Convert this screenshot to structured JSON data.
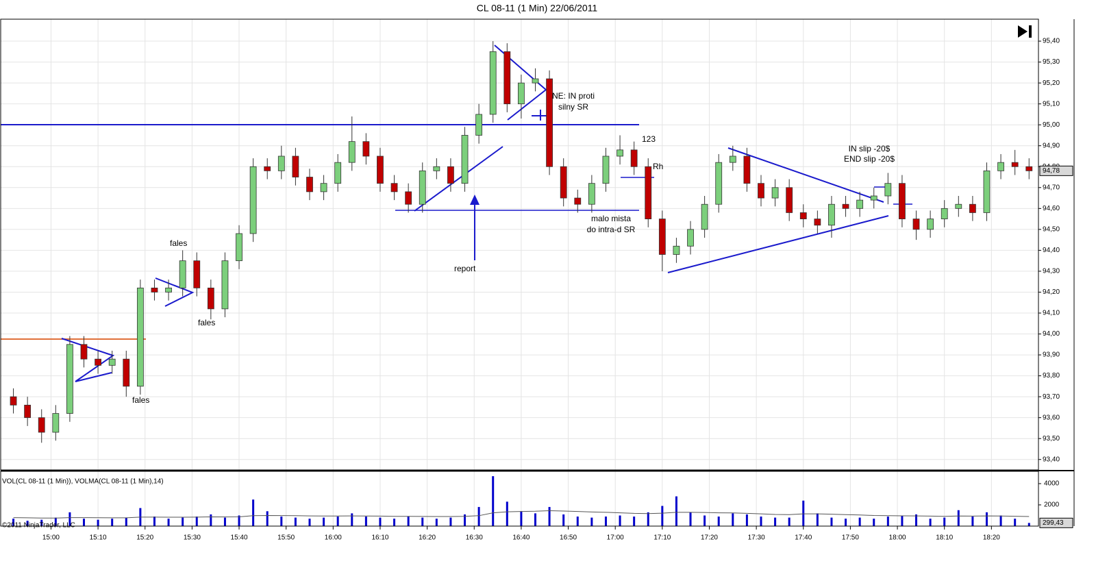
{
  "chart_data": {
    "type": "candlestick",
    "title": "CL 08-11 (1 Min)  22/06/2011",
    "x": [
      892,
      895,
      898,
      901,
      904,
      907,
      910,
      913,
      916,
      919,
      922,
      925,
      928,
      931,
      934,
      937,
      940,
      943,
      946,
      949,
      952,
      955,
      958,
      961,
      964,
      967,
      970,
      973,
      976,
      979,
      982,
      985,
      988,
      991,
      994,
      997,
      1000,
      1003,
      1006,
      1009,
      1012,
      1015,
      1018,
      1021,
      1024,
      1027,
      1030,
      1033,
      1036,
      1039,
      1042,
      1045,
      1048,
      1051,
      1054,
      1057,
      1060,
      1063,
      1066,
      1069,
      1072,
      1075,
      1078,
      1081,
      1084,
      1087,
      1090,
      1093,
      1096,
      1099,
      1102,
      1105,
      1108
    ],
    "open": [
      93.7,
      93.66,
      93.6,
      93.53,
      93.62,
      93.95,
      93.88,
      93.85,
      93.88,
      93.75,
      94.22,
      94.2,
      94.22,
      94.35,
      94.22,
      94.12,
      94.35,
      94.48,
      94.8,
      94.78,
      94.85,
      94.75,
      94.68,
      94.72,
      94.82,
      94.92,
      94.85,
      94.72,
      94.68,
      94.62,
      94.78,
      94.8,
      94.72,
      94.95,
      95.05,
      95.35,
      95.1,
      95.2,
      95.22,
      94.8,
      94.65,
      94.62,
      94.72,
      94.85,
      94.88,
      94.8,
      94.55,
      94.38,
      94.42,
      94.5,
      94.62,
      94.82,
      94.85,
      94.72,
      94.65,
      94.7,
      94.58,
      94.55,
      94.52,
      94.62,
      94.6,
      94.64,
      94.66,
      94.72,
      94.55,
      94.5,
      94.55,
      94.6,
      94.62,
      94.58,
      94.78,
      94.82,
      94.8
    ],
    "high": [
      93.74,
      93.7,
      93.64,
      93.66,
      93.99,
      93.99,
      93.92,
      93.92,
      93.92,
      94.26,
      94.26,
      94.26,
      94.4,
      94.39,
      94.26,
      94.39,
      94.52,
      94.84,
      94.84,
      94.9,
      94.89,
      94.79,
      94.76,
      94.86,
      95.04,
      94.96,
      94.89,
      94.76,
      94.72,
      94.82,
      94.84,
      94.84,
      94.99,
      95.1,
      95.4,
      95.39,
      95.24,
      95.27,
      95.26,
      94.84,
      94.69,
      94.76,
      94.89,
      94.95,
      94.92,
      94.84,
      94.59,
      94.46,
      94.54,
      94.66,
      94.86,
      94.9,
      94.89,
      94.76,
      94.74,
      94.74,
      94.62,
      94.59,
      94.66,
      94.66,
      94.68,
      94.7,
      94.77,
      94.76,
      94.59,
      94.59,
      94.64,
      94.66,
      94.66,
      94.82,
      94.86,
      94.88,
      94.84
    ],
    "low": [
      93.62,
      93.56,
      93.48,
      93.49,
      93.58,
      93.84,
      93.81,
      93.81,
      93.7,
      93.71,
      94.16,
      94.16,
      94.18,
      94.18,
      94.07,
      94.08,
      94.31,
      94.44,
      94.74,
      94.74,
      94.71,
      94.64,
      94.64,
      94.68,
      94.78,
      94.81,
      94.68,
      94.64,
      94.58,
      94.58,
      94.74,
      94.68,
      94.68,
      94.91,
      95.01,
      95.06,
      95.03,
      95.16,
      94.76,
      94.61,
      94.58,
      94.58,
      94.68,
      94.81,
      94.76,
      94.51,
      94.3,
      94.34,
      94.38,
      94.46,
      94.58,
      94.78,
      94.68,
      94.61,
      94.61,
      94.54,
      94.51,
      94.48,
      94.46,
      94.56,
      94.56,
      94.6,
      94.62,
      94.51,
      94.45,
      94.46,
      94.51,
      94.56,
      94.54,
      94.54,
      94.74,
      94.76,
      94.74
    ],
    "close": [
      93.66,
      93.6,
      93.53,
      93.62,
      93.95,
      93.88,
      93.85,
      93.88,
      93.75,
      94.22,
      94.2,
      94.22,
      94.35,
      94.22,
      94.12,
      94.35,
      94.48,
      94.8,
      94.78,
      94.85,
      94.75,
      94.68,
      94.72,
      94.82,
      94.92,
      94.85,
      94.72,
      94.68,
      94.62,
      94.78,
      94.8,
      94.72,
      94.95,
      95.05,
      95.35,
      95.1,
      95.2,
      95.22,
      94.8,
      94.65,
      94.62,
      94.72,
      94.85,
      94.88,
      94.8,
      94.55,
      94.38,
      94.42,
      94.5,
      94.62,
      94.82,
      94.85,
      94.72,
      94.65,
      94.7,
      94.58,
      94.55,
      94.52,
      94.62,
      94.6,
      94.64,
      94.66,
      94.72,
      94.55,
      94.5,
      94.55,
      94.6,
      94.62,
      94.58,
      94.78,
      94.82,
      94.8,
      94.78
    ],
    "up_color": "#7ccf7c",
    "down_color": "#c00000",
    "outline_color": "#333333",
    "grid": true,
    "xlim": [
      889.3,
      1110
    ],
    "ylim": [
      93.35,
      95.505
    ],
    "xticks": [
      {
        "value": 900,
        "label": "15:00"
      },
      {
        "value": 910,
        "label": "15:10"
      },
      {
        "value": 920,
        "label": "15:20"
      },
      {
        "value": 930,
        "label": "15:30"
      },
      {
        "value": 940,
        "label": "15:40"
      },
      {
        "value": 950,
        "label": "15:50"
      },
      {
        "value": 960,
        "label": "16:00"
      },
      {
        "value": 970,
        "label": "16:10"
      },
      {
        "value": 980,
        "label": "16:20"
      },
      {
        "value": 990,
        "label": "16:30"
      },
      {
        "value": 1000,
        "label": "16:40"
      },
      {
        "value": 1010,
        "label": "16:50"
      },
      {
        "value": 1020,
        "label": "17:00"
      },
      {
        "value": 1030,
        "label": "17:10"
      },
      {
        "value": 1040,
        "label": "17:20"
      },
      {
        "value": 1050,
        "label": "17:30"
      },
      {
        "value": 1060,
        "label": "17:40"
      },
      {
        "value": 1070,
        "label": "17:50"
      },
      {
        "value": 1080,
        "label": "18:00"
      },
      {
        "value": 1090,
        "label": "18:10"
      },
      {
        "value": 1100,
        "label": "18:20"
      }
    ],
    "yticks": [
      {
        "value": 93.4,
        "label": "93,40"
      },
      {
        "value": 93.5,
        "label": "93,50"
      },
      {
        "value": 93.6,
        "label": "93,60"
      },
      {
        "value": 93.7,
        "label": "93,70"
      },
      {
        "value": 93.8,
        "label": "93,80"
      },
      {
        "value": 93.9,
        "label": "93,90"
      },
      {
        "value": 94.0,
        "label": "94,00"
      },
      {
        "value": 94.1,
        "label": "94,10"
      },
      {
        "value": 94.2,
        "label": "94,20"
      },
      {
        "value": 94.3,
        "label": "94,30"
      },
      {
        "value": 94.4,
        "label": "94,40"
      },
      {
        "value": 94.5,
        "label": "94,50"
      },
      {
        "value": 94.6,
        "label": "94,60"
      },
      {
        "value": 94.7,
        "label": "94,70"
      },
      {
        "value": 94.8,
        "label": "94,80"
      },
      {
        "value": 94.9,
        "label": "94,90"
      },
      {
        "value": 95.0,
        "label": "95,00"
      },
      {
        "value": 95.1,
        "label": "95,10"
      },
      {
        "value": 95.2,
        "label": "95,20"
      },
      {
        "value": 95.3,
        "label": "95,30"
      },
      {
        "value": 95.4,
        "label": "95,40"
      }
    ],
    "last_price": {
      "value": 94.78,
      "label": "94,78"
    },
    "volume": {
      "label": "VOL(CL 08-11 (1 Min)), VOLMA(CL 08-11 (1 Min),14)",
      "color": "#0000cc",
      "ma_color": "#555555",
      "values": [
        700,
        500,
        600,
        800,
        1300,
        700,
        600,
        700,
        800,
        1700,
        900,
        700,
        800,
        900,
        1100,
        800,
        1000,
        2500,
        1400,
        900,
        800,
        700,
        800,
        900,
        1200,
        900,
        800,
        700,
        900,
        800,
        700,
        800,
        1100,
        1800,
        4700,
        2300,
        1400,
        1200,
        1800,
        1100,
        900,
        800,
        900,
        1000,
        900,
        1300,
        1900,
        2800,
        1300,
        1000,
        900,
        1200,
        1100,
        900,
        800,
        800,
        2400,
        1200,
        800,
        700,
        800,
        700,
        900,
        1000,
        1100,
        700,
        800,
        1500,
        900,
        1300,
        1000,
        700,
        299.43
      ],
      "ma_values": [
        800,
        780,
        760,
        760,
        800,
        800,
        790,
        780,
        780,
        850,
        850,
        840,
        840,
        850,
        870,
        860,
        870,
        980,
        1000,
        990,
        980,
        960,
        950,
        950,
        960,
        950,
        940,
        920,
        920,
        910,
        900,
        900,
        920,
        980,
        1250,
        1350,
        1380,
        1400,
        1450,
        1420,
        1380,
        1330,
        1300,
        1250,
        1200,
        1180,
        1220,
        1300,
        1300,
        1280,
        1250,
        1240,
        1200,
        1150,
        1100,
        1080,
        1150,
        1150,
        1120,
        1080,
        1050,
        1000,
        980,
        970,
        960,
        940,
        920,
        950,
        940,
        960,
        950,
        930,
        900
      ],
      "ylim": [
        0,
        5160
      ],
      "yticks": [
        2000,
        4000
      ],
      "last": {
        "value": 299.43,
        "label": "299,43"
      }
    },
    "annotations": [
      "fales",
      "fales",
      "fales",
      "report",
      "NE: IN proti",
      "silny SR",
      "malo mista",
      "do intra-d SR",
      "123",
      "Rh",
      "IN slip -20$",
      "END slip -20$"
    ],
    "copyright": "©2011 NinjaTrader, LLC"
  }
}
